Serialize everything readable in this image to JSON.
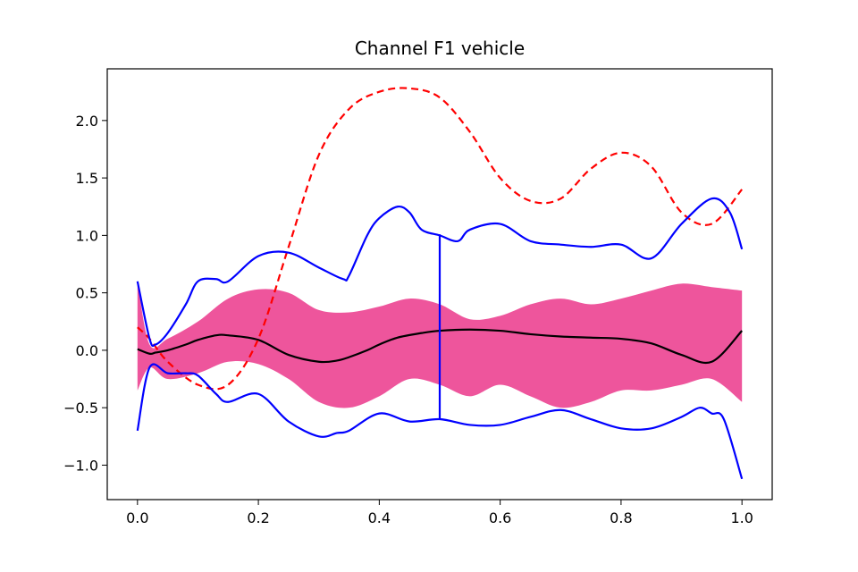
{
  "chart_data": {
    "type": "line",
    "title": "Channel F1 vehicle",
    "xlabel": "",
    "ylabel": "",
    "xlim": [
      -0.05,
      1.05
    ],
    "ylim": [
      -1.3,
      2.45
    ],
    "xticks": [
      0.0,
      0.2,
      0.4,
      0.6,
      0.8,
      1.0
    ],
    "xtick_labels": [
      "0.0",
      "0.2",
      "0.4",
      "0.6",
      "0.8",
      "1.0"
    ],
    "yticks": [
      -1.0,
      -0.5,
      0.0,
      0.5,
      1.0,
      1.5,
      2.0
    ],
    "ytick_labels": [
      "−1.0",
      "−0.5",
      "0.0",
      "0.5",
      "1.0",
      "1.5",
      "2.0"
    ],
    "grid": false,
    "colors": {
      "band": "#ee559c",
      "envelope": "#0000ff",
      "mean": "#000000",
      "dashed": "#ff0000"
    },
    "band": {
      "x": [
        0.0,
        0.02,
        0.05,
        0.1,
        0.15,
        0.2,
        0.25,
        0.3,
        0.35,
        0.4,
        0.45,
        0.5,
        0.55,
        0.6,
        0.65,
        0.7,
        0.75,
        0.8,
        0.85,
        0.9,
        0.95,
        1.0
      ],
      "upper": [
        0.6,
        0.05,
        0.1,
        0.25,
        0.45,
        0.53,
        0.5,
        0.35,
        0.33,
        0.38,
        0.45,
        0.4,
        0.27,
        0.3,
        0.4,
        0.45,
        0.4,
        0.45,
        0.52,
        0.58,
        0.55,
        0.52
      ],
      "lower": [
        -0.35,
        -0.15,
        -0.25,
        -0.2,
        -0.1,
        -0.12,
        -0.25,
        -0.45,
        -0.5,
        -0.4,
        -0.25,
        -0.3,
        -0.4,
        -0.3,
        -0.4,
        -0.5,
        -0.45,
        -0.35,
        -0.35,
        -0.3,
        -0.25,
        -0.45
      ]
    },
    "series": [
      {
        "x": [
          0.0,
          0.02,
          0.03,
          0.05,
          0.08,
          0.1,
          0.13,
          0.15,
          0.2,
          0.25,
          0.3,
          0.33,
          0.35,
          0.38,
          0.4,
          0.43,
          0.47,
          0.5,
          0.55,
          0.6,
          0.65,
          0.7,
          0.75,
          0.8,
          0.85,
          0.9,
          0.95,
          1.0
        ],
        "y": [
          0.01,
          -0.03,
          -0.02,
          0.0,
          0.05,
          0.09,
          0.13,
          0.13,
          0.09,
          -0.04,
          -0.1,
          -0.09,
          -0.06,
          0.0,
          0.05,
          0.11,
          0.15,
          0.17,
          0.18,
          0.17,
          0.14,
          0.12,
          0.11,
          0.1,
          0.06,
          -0.04,
          -0.1,
          0.17
        ]
      },
      {
        "x": [
          0.0,
          0.02,
          0.05,
          0.1,
          0.15,
          0.2,
          0.25,
          0.3,
          0.35,
          0.4,
          0.45,
          0.5,
          0.55,
          0.6,
          0.65,
          0.7,
          0.75,
          0.8,
          0.85,
          0.9,
          0.95,
          1.0
        ],
        "y": [
          0.2,
          0.1,
          -0.1,
          -0.3,
          -0.3,
          0.1,
          0.9,
          1.7,
          2.1,
          2.25,
          2.28,
          2.2,
          1.9,
          1.5,
          1.3,
          1.32,
          1.58,
          1.72,
          1.6,
          1.2,
          1.1,
          1.4
        ]
      },
      {
        "x": [
          0.0,
          0.02,
          0.03,
          0.05,
          0.08,
          0.1,
          0.13,
          0.15,
          0.2,
          0.25,
          0.3,
          0.34,
          0.35,
          0.38,
          0.4,
          0.43,
          0.45,
          0.47,
          0.5,
          0.53,
          0.55,
          0.6,
          0.65,
          0.7,
          0.75,
          0.8,
          0.85,
          0.9,
          0.95,
          0.98,
          1.0
        ],
        "y": [
          0.6,
          0.1,
          0.05,
          0.15,
          0.4,
          0.6,
          0.62,
          0.6,
          0.82,
          0.85,
          0.72,
          0.62,
          0.65,
          1.0,
          1.15,
          1.25,
          1.2,
          1.05,
          1.0,
          0.95,
          1.05,
          1.1,
          0.95,
          0.92,
          0.9,
          0.92,
          0.8,
          1.1,
          1.32,
          1.2,
          0.88
        ]
      },
      {
        "x": [
          0.0,
          0.02,
          0.05,
          0.08,
          0.1,
          0.13,
          0.15,
          0.2,
          0.25,
          0.3,
          0.33,
          0.35,
          0.4,
          0.45,
          0.5,
          0.55,
          0.6,
          0.65,
          0.7,
          0.75,
          0.8,
          0.85,
          0.9,
          0.93,
          0.95,
          0.97,
          1.0
        ],
        "y": [
          -0.7,
          -0.15,
          -0.2,
          -0.2,
          -0.22,
          -0.38,
          -0.45,
          -0.38,
          -0.62,
          -0.75,
          -0.72,
          -0.7,
          -0.55,
          -0.62,
          -0.6,
          -0.65,
          -0.65,
          -0.58,
          -0.52,
          -0.6,
          -0.68,
          -0.68,
          -0.58,
          -0.5,
          -0.55,
          -0.6,
          -1.12
        ]
      },
      {
        "x": [
          0.5,
          0.5
        ],
        "y": [
          1.01,
          -0.6
        ]
      }
    ]
  }
}
